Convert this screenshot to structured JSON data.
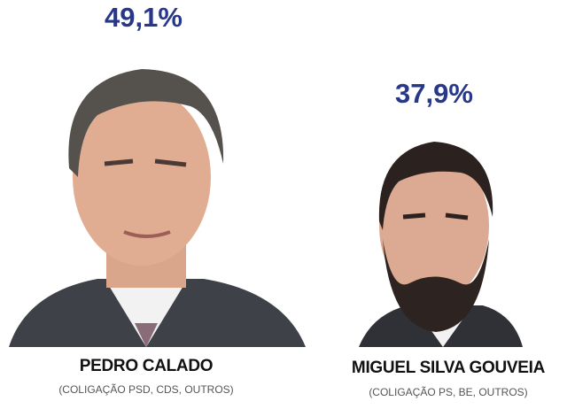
{
  "candidates": [
    {
      "percentage": "49,1%",
      "name": "PEDRO CALADO",
      "coalition": "(COLIGAÇÃO PSD, CDS, OUTROS)"
    },
    {
      "percentage": "37,9%",
      "name": "MIGUEL SILVA GOUVEIA",
      "coalition": "(COLIGAÇÃO PS, BE, OUTROS)"
    }
  ]
}
